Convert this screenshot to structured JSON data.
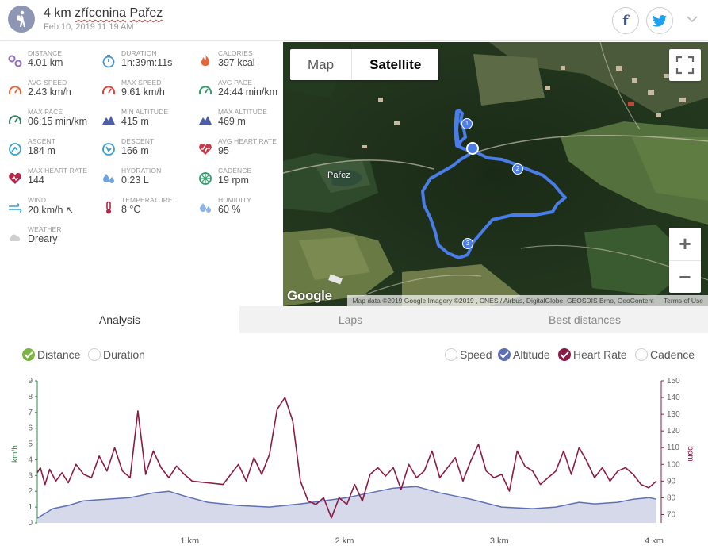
{
  "activity": {
    "title_distance": "4 km",
    "title_name_1": "zřícenina",
    "title_name_2": "Pařez",
    "date": "Feb 10, 2019 11:19 AM",
    "icon": "hiking-person-icon"
  },
  "social": {
    "facebook": "f",
    "twitter": "twitter-bird-icon"
  },
  "stats": [
    {
      "label": "DISTANCE",
      "value": "4.01 km",
      "icon": "distance-icon",
      "color": "#8e6bbf"
    },
    {
      "label": "DURATION",
      "value": "1h:39m:11s",
      "icon": "stopwatch-icon",
      "color": "#4a90c9"
    },
    {
      "label": "CALORIES",
      "value": "397 kcal",
      "icon": "flame-icon",
      "color": "#e8673a"
    },
    {
      "label": "AVG SPEED",
      "value": "2.43 km/h",
      "icon": "speedometer-icon",
      "color": "#e8673a"
    },
    {
      "label": "MAX SPEED",
      "value": "9.61 km/h",
      "icon": "speedometer-icon",
      "color": "#d9443b"
    },
    {
      "label": "AVG PACE",
      "value": "24:44 min/km",
      "icon": "pace-gauge-icon",
      "color": "#2f9e6b"
    },
    {
      "label": "MAX PACE",
      "value": "06:15 min/km",
      "icon": "pace-gauge-icon",
      "color": "#2f7e5b"
    },
    {
      "label": "MIN ALTITUDE",
      "value": "415 m",
      "icon": "mountain-icon",
      "color": "#4b5fa6"
    },
    {
      "label": "MAX ALTITUDE",
      "value": "469 m",
      "icon": "mountain-icon",
      "color": "#4b5fa6"
    },
    {
      "label": "ASCENT",
      "value": "184 m",
      "icon": "ascent-icon",
      "color": "#3a9fc9"
    },
    {
      "label": "DESCENT",
      "value": "166 m",
      "icon": "descent-icon",
      "color": "#3a9fc9"
    },
    {
      "label": "AVG HEART RATE",
      "value": "95",
      "icon": "heart-rate-icon",
      "color": "#c9394a"
    },
    {
      "label": "MAX HEART RATE",
      "value": "144",
      "icon": "heart-icon",
      "color": "#b3264a"
    },
    {
      "label": "HYDRATION",
      "value": "0.23 L",
      "icon": "water-drops-icon",
      "color": "#6fa3e0"
    },
    {
      "label": "CADENCE",
      "value": "19 rpm",
      "icon": "wheel-icon",
      "color": "#2f9e6b"
    },
    {
      "label": "WIND",
      "value": "20 km/h ↖",
      "icon": "wind-icon",
      "color": "#3a9fc9"
    },
    {
      "label": "TEMPERATURE",
      "value": "8 °C",
      "icon": "thermometer-icon",
      "color": "#b3264a"
    },
    {
      "label": "HUMIDITY",
      "value": "60 %",
      "icon": "humidity-drops-icon",
      "color": "#8fb5e8"
    },
    {
      "label": "WEATHER",
      "value": "Dreary",
      "icon": "cloud-icon",
      "color": "#cfcfcf"
    }
  ],
  "map": {
    "types": [
      "Map",
      "Satellite"
    ],
    "active_type": "Satellite",
    "place_label": "Pařez",
    "markers": [
      "1",
      "2",
      "3"
    ],
    "zoom_in": "+",
    "zoom_out": "−",
    "logo": "Google",
    "attribution": "Map data ©2019 Google Imagery ©2019 , CNES / Airbus, DigitalGlobe, GEOSDIS Brno, GeoContent",
    "terms": "Terms of Use"
  },
  "tabs": [
    "Analysis",
    "Laps",
    "Best distances"
  ],
  "active_tab": "Analysis",
  "x_options": [
    {
      "label": "Distance",
      "checked": true,
      "color": "#7db342"
    },
    {
      "label": "Duration",
      "checked": false
    }
  ],
  "series_options": [
    {
      "label": "Speed",
      "checked": false
    },
    {
      "label": "Altitude",
      "checked": true,
      "color": "#5e6fb3"
    },
    {
      "label": "Heart Rate",
      "checked": true,
      "color": "#8b1a44"
    },
    {
      "label": "Cadence",
      "checked": false
    }
  ],
  "chart_data": {
    "type": "line",
    "x_unit": "km",
    "x_range": [
      0,
      4
    ],
    "x_ticks": [
      "1 km",
      "2 km",
      "3 km",
      "4 km"
    ],
    "left_axis": {
      "label": "km/h",
      "range": [
        0,
        9
      ],
      "ticks": [
        0,
        1,
        2,
        3,
        4,
        5,
        6,
        7,
        8,
        9
      ],
      "color": "#2f8a4b"
    },
    "right_axis": {
      "label": "bpm",
      "range": [
        65,
        150
      ],
      "ticks": [
        70,
        80,
        90,
        100,
        110,
        120,
        130,
        140,
        150
      ],
      "color": "#8b1a44"
    },
    "series": [
      {
        "name": "Altitude",
        "axis": "left",
        "style": "area",
        "color": "#5e6fb3",
        "fill": "#d5d9ea",
        "x": [
          0,
          0.1,
          0.2,
          0.3,
          0.45,
          0.6,
          0.75,
          0.85,
          0.95,
          1.1,
          1.3,
          1.5,
          1.7,
          1.85,
          2.0,
          2.15,
          2.3,
          2.45,
          2.6,
          2.8,
          3.0,
          3.2,
          3.35,
          3.5,
          3.6,
          3.75,
          3.85,
          3.95,
          4.0
        ],
        "y": [
          0.3,
          0.9,
          1.1,
          1.4,
          1.5,
          1.6,
          1.9,
          2.0,
          1.7,
          1.3,
          1.1,
          1.0,
          1.2,
          1.4,
          1.6,
          1.9,
          2.2,
          2.3,
          1.9,
          1.5,
          1.0,
          0.9,
          1.0,
          1.3,
          1.2,
          1.3,
          1.5,
          1.6,
          1.5
        ]
      },
      {
        "name": "Heart Rate",
        "axis": "right",
        "style": "line",
        "color": "#8b1a44",
        "x": [
          0,
          0.02,
          0.05,
          0.08,
          0.12,
          0.16,
          0.2,
          0.25,
          0.3,
          0.35,
          0.4,
          0.45,
          0.5,
          0.55,
          0.6,
          0.65,
          0.7,
          0.75,
          0.8,
          0.85,
          0.9,
          0.95,
          1.0,
          1.1,
          1.2,
          1.3,
          1.35,
          1.4,
          1.45,
          1.5,
          1.55,
          1.6,
          1.65,
          1.7,
          1.75,
          1.8,
          1.85,
          1.9,
          1.95,
          2.0,
          2.05,
          2.1,
          2.15,
          2.2,
          2.25,
          2.3,
          2.35,
          2.4,
          2.45,
          2.5,
          2.55,
          2.6,
          2.65,
          2.7,
          2.75,
          2.8,
          2.85,
          2.9,
          2.95,
          3.0,
          3.05,
          3.1,
          3.15,
          3.2,
          3.25,
          3.3,
          3.35,
          3.4,
          3.45,
          3.5,
          3.55,
          3.6,
          3.65,
          3.7,
          3.75,
          3.8,
          3.85,
          3.9,
          3.95,
          4.0
        ],
        "y": [
          95,
          98,
          88,
          97,
          90,
          95,
          89,
          100,
          94,
          92,
          105,
          96,
          110,
          96,
          92,
          132,
          94,
          108,
          98,
          92,
          99,
          94,
          90,
          89,
          88,
          100,
          90,
          104,
          94,
          106,
          133,
          140,
          126,
          90,
          78,
          76,
          80,
          68,
          80,
          76,
          88,
          78,
          94,
          98,
          93,
          98,
          85,
          100,
          92,
          96,
          108,
          92,
          98,
          104,
          90,
          102,
          112,
          96,
          92,
          94,
          84,
          108,
          99,
          96,
          88,
          92,
          96,
          108,
          94,
          110,
          102,
          92,
          98,
          90,
          96,
          98,
          94,
          88,
          86,
          90
        ]
      }
    ]
  }
}
